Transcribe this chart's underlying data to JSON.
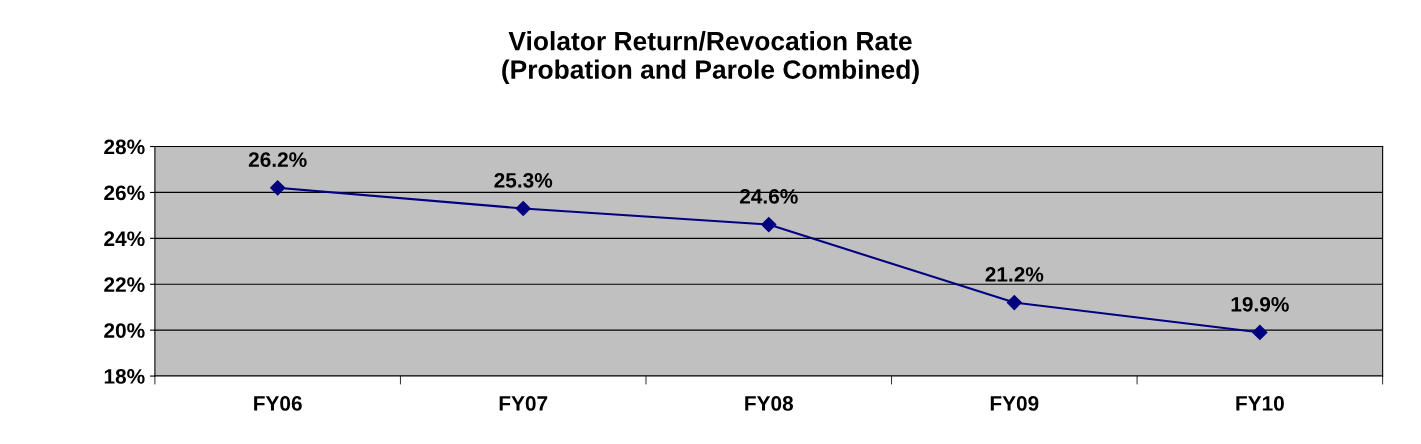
{
  "chart_data": {
    "type": "line",
    "title": "Violator Return/Revocation Rate\n(Probation and Parole Combined)",
    "categories": [
      "FY06",
      "FY07",
      "FY08",
      "FY09",
      "FY10"
    ],
    "series": [
      {
        "color": "#000080",
        "values": [
          26.2,
          25.3,
          24.6,
          21.2,
          19.9
        ],
        "value_labels": [
          "26.2%",
          "25.3%",
          "24.6%",
          "21.2%",
          "19.9%"
        ]
      }
    ],
    "ylim": [
      18,
      28
    ],
    "yticks": [
      {
        "value": 18,
        "label": "18%"
      },
      {
        "value": 20,
        "label": "20%"
      },
      {
        "value": 22,
        "label": "22%"
      },
      {
        "value": 24,
        "label": "24%"
      },
      {
        "value": 26,
        "label": "26%"
      },
      {
        "value": 28,
        "label": "28%"
      }
    ],
    "grid": "y",
    "marker": "diamond",
    "line_style": "solid"
  }
}
